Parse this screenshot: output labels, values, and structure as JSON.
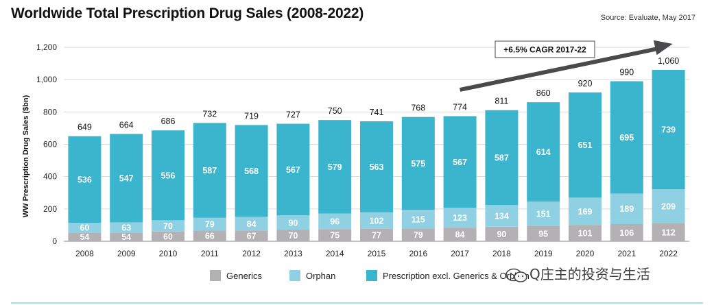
{
  "header": {
    "title": "Worldwide Total Prescription Drug Sales (2008-2022)",
    "source": "Source: Evaluate, May 2017"
  },
  "watermark": {
    "text": "Q庄主的投资与生活",
    "logo_icon": "wechat-logo-icon"
  },
  "colors": {
    "generics": "#b3b1b4",
    "orphan": "#8fd1e2",
    "prescription": "#3bb4cd",
    "arrow": "#4a4a4c"
  },
  "chart_data": {
    "type": "bar",
    "stacked": true,
    "title": "Worldwide Total Prescription Drug Sales (2008-2022)",
    "ylabel": "WW Prescription Drug Sales ($bn)",
    "xlabel": "",
    "ylim": [
      0,
      1200
    ],
    "yticks": [
      0,
      200,
      400,
      600,
      800,
      1000,
      1200
    ],
    "ytick_labels": [
      "0",
      "200",
      "400",
      "600",
      "800",
      "1,000",
      "1,200"
    ],
    "grid": true,
    "legend_position": "bottom",
    "categories": [
      "2008",
      "2009",
      "2010",
      "2011",
      "2012",
      "2013",
      "2014",
      "2015",
      "2016",
      "2017",
      "2018",
      "2019",
      "2020",
      "2021",
      "2022"
    ],
    "series": [
      {
        "name": "Generics",
        "color": "#b3b1b4",
        "values": [
          54,
          54,
          60,
          66,
          67,
          70,
          75,
          77,
          79,
          84,
          90,
          95,
          101,
          106,
          112
        ]
      },
      {
        "name": "Orphan",
        "color": "#8fd1e2",
        "values": [
          60,
          63,
          70,
          79,
          84,
          90,
          96,
          102,
          115,
          123,
          134,
          151,
          169,
          189,
          209
        ]
      },
      {
        "name": "Prescription excl. Generics & Orphan",
        "color": "#3bb4cd",
        "values": [
          536,
          547,
          556,
          587,
          568,
          567,
          579,
          563,
          575,
          567,
          587,
          614,
          651,
          695,
          739
        ]
      }
    ],
    "totals": [
      "649",
      "664",
      "686",
      "732",
      "719",
      "727",
      "750",
      "741",
      "768",
      "774",
      "811",
      "860",
      "920",
      "990",
      "1,060"
    ],
    "annotation": {
      "text": "+6.5% CAGR 2017-22",
      "from": "2017",
      "to": "2022"
    }
  }
}
